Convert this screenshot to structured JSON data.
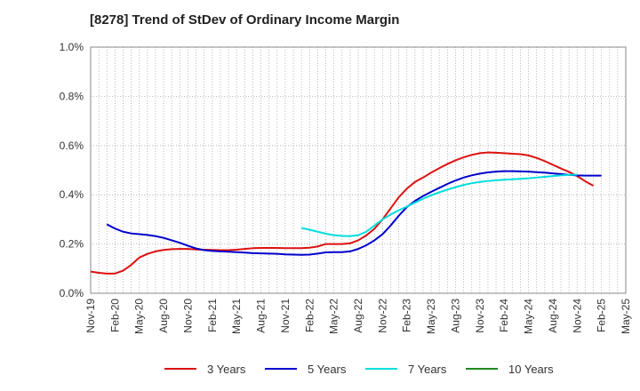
{
  "chart_data": {
    "type": "line",
    "title": "[8278]  Trend of StDev of Ordinary Income Margin",
    "xlabel": "",
    "ylabel": "",
    "ylim": [
      0,
      1.0
    ],
    "y_ticks": [
      "0.0%",
      "0.2%",
      "0.4%",
      "0.6%",
      "0.8%",
      "1.0%"
    ],
    "y_tick_values": [
      0,
      0.2,
      0.4,
      0.6,
      0.8,
      1.0
    ],
    "x_start": "2019-11",
    "x_end": "2025-05",
    "x_tick_labels": [
      "Nov-19",
      "Feb-20",
      "May-20",
      "Aug-20",
      "Nov-20",
      "Feb-21",
      "May-21",
      "Aug-21",
      "Nov-21",
      "Feb-22",
      "May-22",
      "Aug-22",
      "Nov-22",
      "Feb-23",
      "May-23",
      "Aug-23",
      "Nov-23",
      "Feb-24",
      "May-24",
      "Aug-24",
      "Nov-24",
      "Feb-25",
      "May-25"
    ],
    "grid": true,
    "legend_position": "bottom",
    "series": [
      {
        "name": "3 Years",
        "color": "#dd1111",
        "start": "2019-11",
        "values": [
          0.088,
          0.083,
          0.08,
          0.08,
          0.092,
          0.115,
          0.145,
          0.16,
          0.17,
          0.176,
          0.179,
          0.18,
          0.18,
          0.178,
          0.177,
          0.176,
          0.175,
          0.175,
          0.177,
          0.18,
          0.183,
          0.184,
          0.184,
          0.184,
          0.183,
          0.183,
          0.183,
          0.185,
          0.19,
          0.2,
          0.2,
          0.2,
          0.203,
          0.215,
          0.235,
          0.262,
          0.3,
          0.345,
          0.39,
          0.425,
          0.452,
          0.47,
          0.49,
          0.508,
          0.525,
          0.54,
          0.552,
          0.562,
          0.569,
          0.572,
          0.571,
          0.569,
          0.567,
          0.565,
          0.56,
          0.55,
          0.537,
          0.522,
          0.507,
          0.493,
          0.476,
          0.455,
          0.437
        ]
      },
      {
        "name": "5 Years",
        "color": "#0000cc",
        "start": "2020-01",
        "values": [
          0.28,
          0.263,
          0.25,
          0.243,
          0.24,
          0.237,
          0.232,
          0.225,
          0.215,
          0.205,
          0.193,
          0.182,
          0.175,
          0.172,
          0.17,
          0.169,
          0.167,
          0.165,
          0.163,
          0.162,
          0.161,
          0.16,
          0.158,
          0.157,
          0.156,
          0.157,
          0.161,
          0.166,
          0.167,
          0.167,
          0.17,
          0.18,
          0.195,
          0.215,
          0.24,
          0.275,
          0.315,
          0.35,
          0.375,
          0.395,
          0.412,
          0.428,
          0.444,
          0.458,
          0.47,
          0.479,
          0.486,
          0.491,
          0.494,
          0.496,
          0.496,
          0.495,
          0.494,
          0.492,
          0.49,
          0.487,
          0.484,
          0.481,
          0.479,
          0.478,
          0.478,
          0.478
        ]
      },
      {
        "name": "7 Years",
        "color": "#00dddd",
        "start": "2022-01",
        "values": [
          0.265,
          0.258,
          0.25,
          0.242,
          0.236,
          0.233,
          0.232,
          0.236,
          0.25,
          0.275,
          0.3,
          0.32,
          0.337,
          0.352,
          0.368,
          0.384,
          0.398,
          0.41,
          0.421,
          0.431,
          0.44,
          0.447,
          0.452,
          0.456,
          0.459,
          0.461,
          0.463,
          0.465,
          0.467,
          0.47,
          0.473,
          0.476,
          0.479,
          0.481,
          0.482
        ]
      },
      {
        "name": "10 Years",
        "color": "#228822",
        "start": "2019-11",
        "values": []
      }
    ]
  }
}
